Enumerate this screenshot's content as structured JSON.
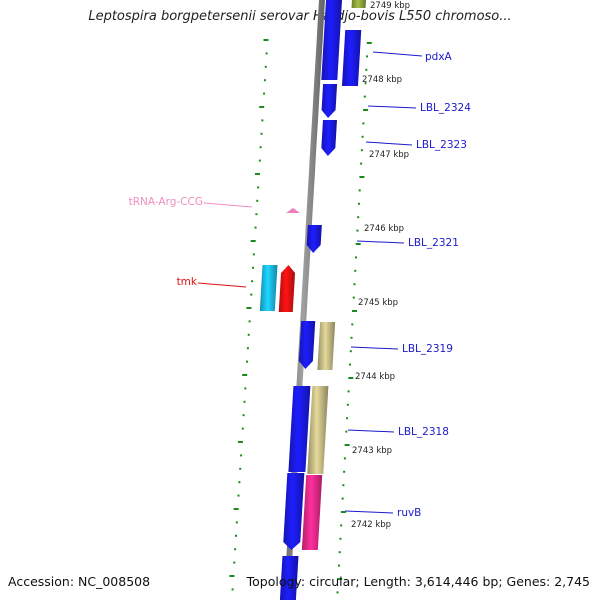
{
  "title": "Leptospira borgpetersenii serovar Hardjo-bovis L550 chromoso...",
  "footer": {
    "accession": "Accession: NC_008508",
    "topology": "Topology: circular; Length: 3,614,446 bp; Genes: 2,745"
  },
  "colors": {
    "backbone": "#8c8c8c",
    "cds": "#1a1aee",
    "cds_highlight": "#1bbcf0",
    "trna": "#ee7fbf",
    "tmk": "#ee1111",
    "khaki": "#c7bd86",
    "magenta": "#ee2a8a",
    "olive": "#8fa83a",
    "tick": "#1a8a1a",
    "label_blue": "#1a1acc",
    "label_pink": "#ee8fc0",
    "label_red": "#dd1111"
  },
  "tick_labels": [
    "2749 kbp",
    "2748 kbp",
    "2747 kbp",
    "2746 kbp",
    "2745 kbp",
    "2744 kbp",
    "2743 kbp",
    "2742 kbp"
  ],
  "gene_labels": [
    {
      "text": "pdxA",
      "color": "label_blue"
    },
    {
      "text": "LBL_2324",
      "color": "label_blue"
    },
    {
      "text": "LBL_2323",
      "color": "label_blue"
    },
    {
      "text": "tRNA-Arg-CCG",
      "color": "label_pink"
    },
    {
      "text": "LBL_2321",
      "color": "label_blue"
    },
    {
      "text": "tmk",
      "color": "label_red"
    },
    {
      "text": "LBL_2319",
      "color": "label_blue"
    },
    {
      "text": "LBL_2318",
      "color": "label_blue"
    },
    {
      "text": "ruvB",
      "color": "label_blue"
    }
  ]
}
